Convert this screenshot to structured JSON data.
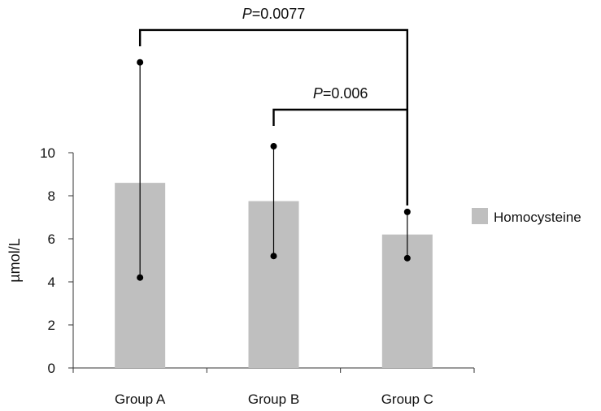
{
  "chart_data": {
    "type": "bar",
    "categories": [
      "Group A",
      "Group B",
      "Group C"
    ],
    "series": [
      {
        "name": "Homocysteine",
        "values": [
          8.6,
          7.75,
          6.2
        ],
        "error_low": [
          4.2,
          5.2,
          5.1
        ],
        "error_high": [
          14.2,
          10.3,
          7.25
        ]
      }
    ],
    "ylabel": "µmol/L",
    "xlabel": "",
    "yticks": [
      0,
      2,
      4,
      6,
      8,
      10
    ],
    "ylim": [
      0,
      10
    ],
    "grid": false,
    "legend_position": "right",
    "bar_color": "#bfbfbf",
    "significance": [
      {
        "from": "Group A",
        "to": "Group C",
        "label_italic": "P",
        "label_value": "=0.0077",
        "level": 15.7
      },
      {
        "from": "Group B",
        "to": "Group C",
        "label_italic": "P",
        "label_value": "=0.006",
        "level": 12.0
      }
    ]
  }
}
